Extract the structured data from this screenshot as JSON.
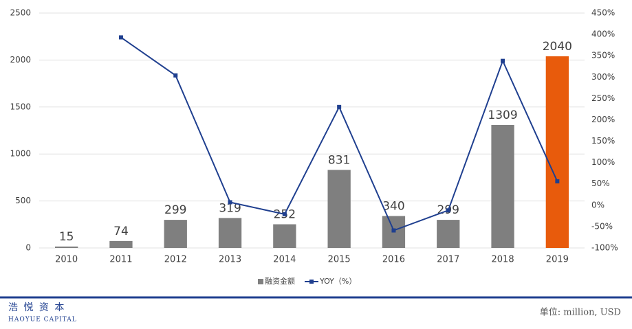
{
  "chart_data": {
    "type": "bar-line",
    "categories": [
      "2010",
      "2011",
      "2012",
      "2013",
      "2014",
      "2015",
      "2016",
      "2017",
      "2018",
      "2019"
    ],
    "series": [
      {
        "name": "融资金额",
        "type": "bar",
        "color": "#7f7f7f",
        "colors": [
          "#7f7f7f",
          "#7f7f7f",
          "#7f7f7f",
          "#7f7f7f",
          "#7f7f7f",
          "#7f7f7f",
          "#7f7f7f",
          "#7f7f7f",
          "#7f7f7f",
          "#e85b0c"
        ],
        "values": [
          15,
          74,
          299,
          319,
          252,
          831,
          340,
          299,
          1309,
          2040
        ]
      },
      {
        "name": "YOY（%）",
        "type": "line",
        "axis": "y2",
        "color": "#1f3f8f",
        "values": [
          null,
          393,
          304,
          7,
          -21,
          230,
          -59,
          -12,
          338,
          56
        ]
      }
    ],
    "ylim": [
      0,
      2500
    ],
    "yticks": [
      0,
      500,
      1000,
      1500,
      2000,
      2500
    ],
    "y2lim": [
      -100,
      450
    ],
    "y2ticks": [
      {
        "value": -100,
        "label": "-100%"
      },
      {
        "value": -50,
        "label": "-50%"
      },
      {
        "value": 0,
        "label": "0%"
      },
      {
        "value": 50,
        "label": "50%"
      },
      {
        "value": 100,
        "label": "100%"
      },
      {
        "value": 150,
        "label": "150%"
      },
      {
        "value": 200,
        "label": "200%"
      },
      {
        "value": 250,
        "label": "250%"
      },
      {
        "value": 300,
        "label": "300%"
      },
      {
        "value": 350,
        "label": "350%"
      },
      {
        "value": 400,
        "label": "400%"
      },
      {
        "value": 450,
        "label": "450%"
      }
    ],
    "grid": true,
    "legend": "bottom"
  },
  "footer": {
    "logo": "浩 悦 资 本",
    "logo_en": "HAOYUE CAPITAL",
    "unit": "单位: million, USD"
  }
}
